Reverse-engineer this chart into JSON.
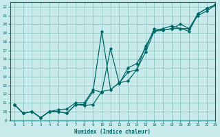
{
  "xlabel": "Humidex (Indice chaleur)",
  "background_color": "#c8eaea",
  "grid_color": "#90c4c4",
  "line_color": "#006868",
  "xlim": [
    -0.5,
    23
  ],
  "ylim": [
    9,
    22.5
  ],
  "xticks": [
    0,
    1,
    2,
    3,
    4,
    5,
    6,
    7,
    8,
    9,
    10,
    11,
    12,
    13,
    14,
    15,
    16,
    17,
    18,
    19,
    20,
    21,
    22,
    23
  ],
  "yticks": [
    9,
    10,
    11,
    12,
    13,
    14,
    15,
    16,
    17,
    18,
    19,
    20,
    21,
    22
  ],
  "line1_x": [
    0,
    1,
    2,
    3,
    4,
    5,
    6,
    7,
    8,
    9,
    10,
    11,
    12,
    13,
    14,
    15,
    16,
    17,
    18,
    19,
    20,
    21,
    22,
    23
  ],
  "line1_y": [
    10.8,
    9.8,
    10.0,
    9.3,
    10.0,
    10.0,
    9.8,
    10.8,
    10.7,
    10.8,
    12.3,
    12.5,
    13.3,
    14.5,
    14.8,
    16.8,
    19.2,
    19.5,
    19.8,
    19.5,
    19.2,
    21.2,
    21.8,
    22.2
  ],
  "line2_x": [
    0,
    1,
    2,
    3,
    4,
    5,
    6,
    7,
    8,
    9,
    10,
    11,
    12,
    13,
    14,
    15,
    16,
    17,
    18,
    19,
    20,
    21,
    22,
    23
  ],
  "line2_y": [
    10.8,
    9.8,
    10.0,
    9.3,
    10.0,
    10.0,
    9.8,
    10.8,
    10.8,
    12.3,
    19.2,
    12.5,
    13.3,
    13.5,
    14.8,
    17.5,
    19.2,
    19.3,
    19.5,
    19.5,
    19.5,
    21.2,
    21.8,
    22.2
  ],
  "line3_x": [
    0,
    1,
    2,
    3,
    4,
    5,
    6,
    7,
    8,
    9,
    10,
    11,
    12,
    13,
    14,
    15,
    16,
    17,
    18,
    19,
    20,
    21,
    22,
    23
  ],
  "line3_y": [
    10.8,
    9.8,
    10.0,
    9.3,
    10.0,
    10.2,
    10.3,
    11.0,
    11.0,
    12.5,
    12.2,
    17.2,
    13.2,
    15.0,
    15.5,
    17.2,
    19.5,
    19.3,
    19.5,
    20.0,
    19.5,
    21.0,
    21.5,
    22.2
  ]
}
